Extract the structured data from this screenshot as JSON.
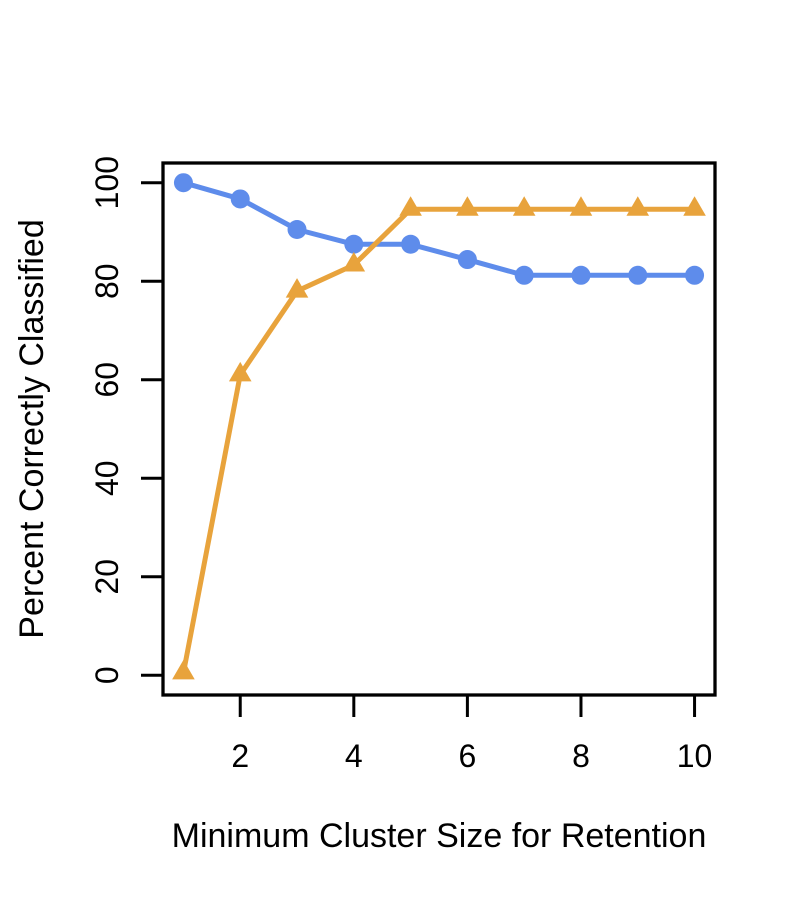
{
  "chart_data": {
    "type": "line",
    "title": "",
    "xlabel": "Minimum Cluster Size for Retention",
    "ylabel": "Percent Correctly Classified",
    "x": [
      1,
      2,
      3,
      4,
      5,
      6,
      7,
      8,
      9,
      10
    ],
    "series": [
      {
        "name": "blue-circle-series",
        "marker": "circle",
        "color": "#5E8CEB",
        "values": [
          100,
          96.7,
          90.5,
          87.5,
          87.5,
          84.4,
          81.2,
          81.2,
          81.2,
          81.2
        ]
      },
      {
        "name": "orange-triangle-series",
        "marker": "triangle",
        "color": "#E8A33C",
        "values": [
          0.5,
          61,
          78,
          83.3,
          94.6,
          94.6,
          94.6,
          94.6,
          94.6,
          94.6
        ]
      }
    ],
    "xlim": [
      1,
      10
    ],
    "ylim": [
      0,
      100
    ],
    "x_ticks": [
      2,
      4,
      6,
      8,
      10
    ],
    "y_ticks": [
      0,
      20,
      40,
      60,
      80,
      100
    ],
    "grid": false,
    "legend": "none",
    "axis_color": "#000000",
    "background": "#ffffff"
  }
}
